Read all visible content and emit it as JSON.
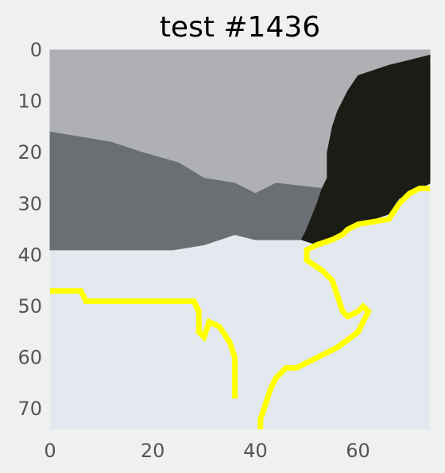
{
  "chart_data": {
    "type": "heatmap",
    "title": "test #1436",
    "xlabel": "",
    "ylabel": "",
    "xlim": [
      0,
      74
    ],
    "ylim": [
      74,
      0
    ],
    "x_ticks": [
      0,
      20,
      40,
      60
    ],
    "y_ticks": [
      0,
      10,
      20,
      30,
      40,
      50,
      60,
      70
    ],
    "grid": false,
    "image_shape": [
      74,
      74
    ],
    "regions": [
      {
        "label": "light-gray-area",
        "color": "#aeb0b3",
        "boundary": [
          [
            0,
            0
          ],
          [
            74,
            0
          ],
          [
            74,
            1
          ],
          [
            66,
            3
          ],
          [
            60,
            5
          ],
          [
            58,
            8
          ],
          [
            56,
            12
          ],
          [
            55,
            15
          ],
          [
            54,
            20
          ],
          [
            54,
            25
          ],
          [
            53,
            27
          ],
          [
            44,
            26
          ],
          [
            40,
            28
          ],
          [
            36,
            26
          ],
          [
            30,
            25
          ],
          [
            25,
            22
          ],
          [
            18,
            20
          ],
          [
            12,
            18
          ],
          [
            6,
            17
          ],
          [
            0,
            16
          ]
        ]
      },
      {
        "label": "dark-gray-area",
        "color": "#6b6f74",
        "boundary": [
          [
            0,
            16
          ],
          [
            6,
            17
          ],
          [
            12,
            18
          ],
          [
            18,
            20
          ],
          [
            25,
            22
          ],
          [
            30,
            25
          ],
          [
            36,
            26
          ],
          [
            40,
            28
          ],
          [
            44,
            26
          ],
          [
            53,
            27
          ],
          [
            52,
            30
          ],
          [
            50,
            35
          ],
          [
            49,
            37
          ],
          [
            40,
            37
          ],
          [
            36,
            36
          ],
          [
            30,
            38
          ],
          [
            24,
            39
          ],
          [
            0,
            39
          ]
        ]
      },
      {
        "label": "black-area",
        "color": "#1c1c16",
        "boundary": [
          [
            74,
            1
          ],
          [
            74,
            26
          ],
          [
            72,
            27
          ],
          [
            68,
            29
          ],
          [
            66,
            32
          ],
          [
            60,
            34
          ],
          [
            58,
            35
          ],
          [
            55,
            37
          ],
          [
            52,
            38
          ],
          [
            49,
            37
          ],
          [
            50,
            35
          ],
          [
            52,
            30
          ],
          [
            53,
            27
          ],
          [
            54,
            25
          ],
          [
            54,
            20
          ],
          [
            55,
            15
          ],
          [
            56,
            12
          ],
          [
            58,
            8
          ],
          [
            60,
            5
          ],
          [
            66,
            3
          ]
        ]
      }
    ],
    "background_color": "#e4e8ef",
    "boundary_lines": [
      {
        "color": "#ffff00",
        "points": [
          [
            0,
            47
          ],
          [
            6,
            47
          ],
          [
            7,
            49
          ],
          [
            12,
            49
          ],
          [
            18,
            49
          ],
          [
            28,
            49
          ],
          [
            29,
            51
          ],
          [
            29,
            55
          ],
          [
            30,
            56
          ],
          [
            31,
            53
          ],
          [
            33,
            54
          ],
          [
            35,
            57
          ],
          [
            36,
            60
          ],
          [
            36,
            68
          ]
        ]
      },
      {
        "color": "#ffff00",
        "points": [
          [
            74,
            27
          ],
          [
            72,
            27
          ],
          [
            70,
            28
          ],
          [
            68,
            30
          ],
          [
            66,
            33
          ],
          [
            60,
            34
          ],
          [
            58,
            35
          ],
          [
            57,
            36
          ],
          [
            55,
            37
          ],
          [
            52,
            38
          ],
          [
            50,
            39
          ],
          [
            50,
            41
          ],
          [
            53,
            43
          ],
          [
            55,
            45
          ],
          [
            56,
            48
          ],
          [
            57,
            51
          ],
          [
            58,
            52
          ],
          [
            60,
            51
          ],
          [
            61,
            50
          ],
          [
            62,
            51
          ],
          [
            60,
            55
          ],
          [
            56,
            58
          ],
          [
            52,
            60
          ],
          [
            48,
            62
          ],
          [
            46,
            62
          ],
          [
            44,
            64
          ],
          [
            43,
            66
          ],
          [
            42,
            69
          ],
          [
            41,
            72
          ],
          [
            41,
            74
          ]
        ]
      }
    ]
  }
}
